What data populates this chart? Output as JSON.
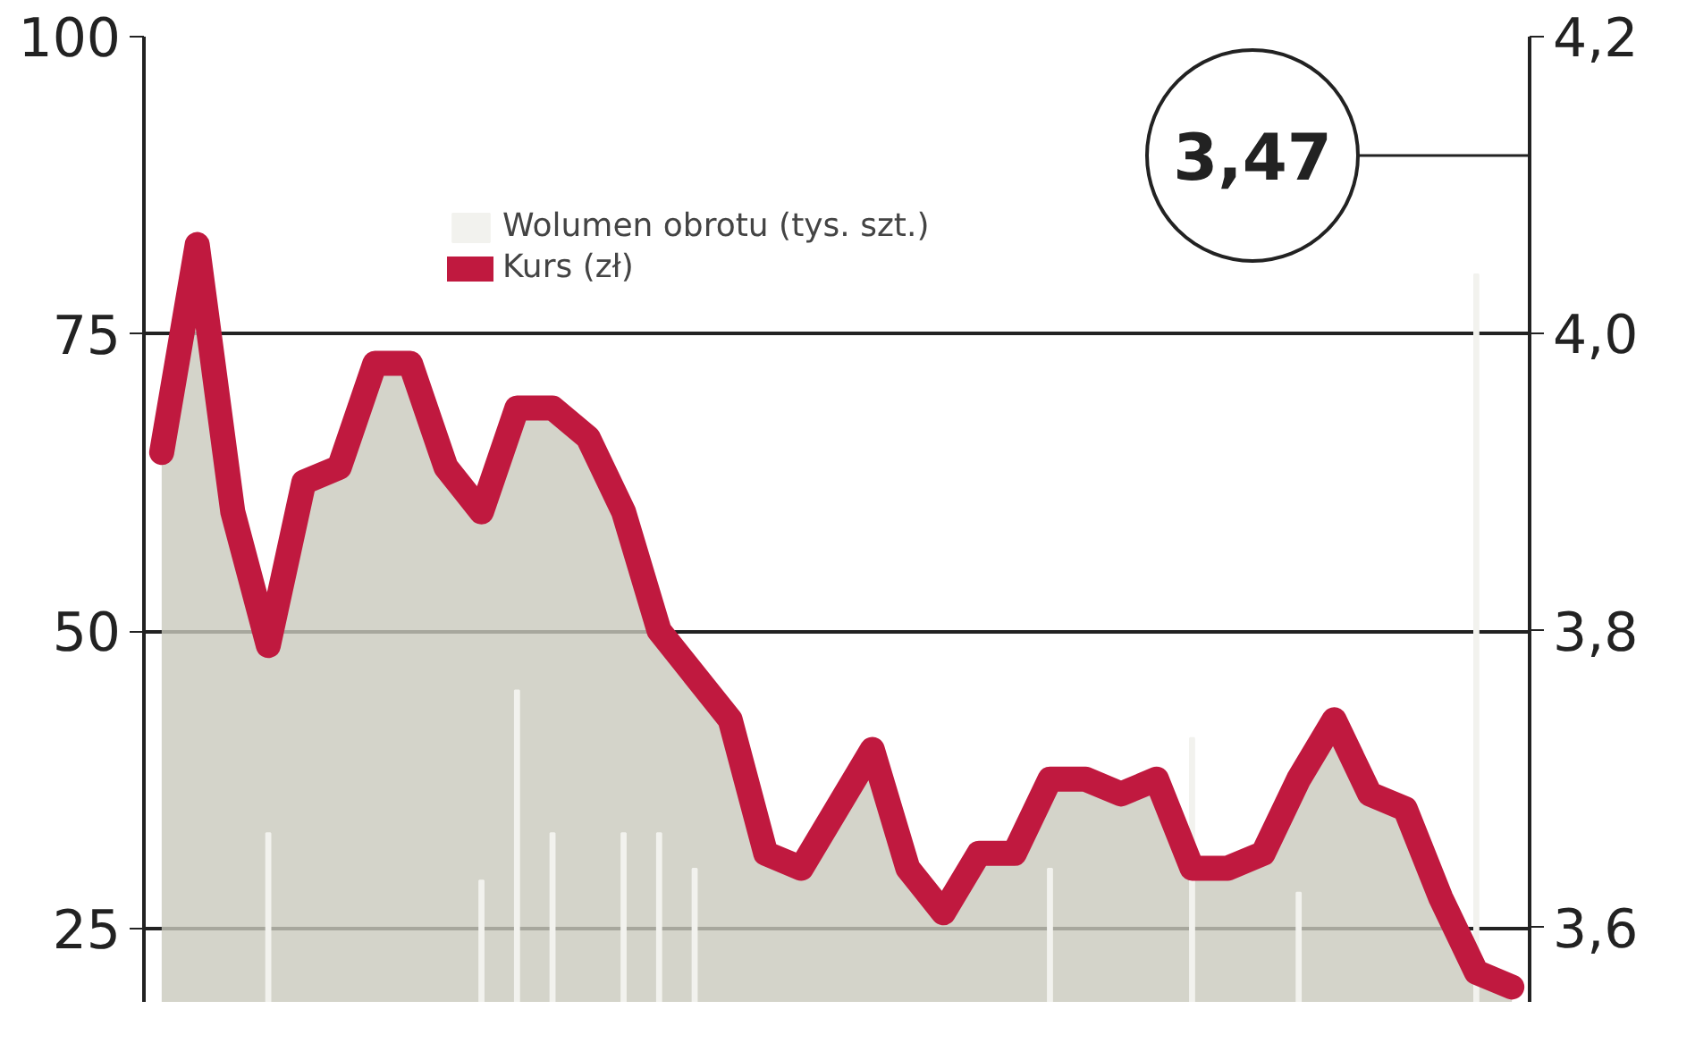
{
  "chart_data": {
    "type": "bar",
    "categories": [
      null,
      null,
      null,
      null,
      null,
      null,
      null,
      null,
      null,
      null,
      null,
      null,
      null,
      null,
      null,
      null,
      null,
      null,
      null,
      null,
      null,
      null,
      null,
      null,
      null,
      null,
      null,
      null,
      null,
      null,
      null,
      null,
      null,
      null,
      null,
      null,
      null,
      null,
      null
    ],
    "series": [
      {
        "name": "Wolumen obrotu (tys. szt.)",
        "color": "#f2f2ee",
        "values": [
          null,
          null,
          null,
          33,
          null,
          null,
          null,
          null,
          null,
          29,
          45,
          33,
          null,
          33,
          33,
          30,
          null,
          null,
          null,
          null,
          null,
          null,
          null,
          null,
          null,
          30,
          null,
          null,
          null,
          41,
          null,
          null,
          28,
          null,
          null,
          null,
          null,
          80,
          null
        ]
      },
      {
        "name": "Kurs (zł)",
        "type": "area",
        "axis": "y2",
        "color": "#c0193f",
        "values": [
          3.92,
          4.06,
          3.88,
          3.79,
          3.9,
          3.91,
          3.98,
          3.98,
          3.91,
          3.88,
          3.95,
          3.95,
          3.93,
          3.88,
          3.8,
          3.77,
          3.74,
          3.65,
          3.64,
          3.68,
          3.72,
          3.64,
          3.61,
          3.65,
          3.65,
          3.7,
          3.7,
          3.69,
          3.7,
          3.64,
          3.64,
          3.65,
          3.7,
          3.74,
          3.69,
          3.68,
          3.62,
          3.57,
          3.56
        ]
      }
    ],
    "ylim": [
      18.8,
      100
    ],
    "yticks": [
      25,
      50,
      75,
      100
    ],
    "y2lim": [
      3.55,
      4.2
    ],
    "y2ticks": [
      {
        "value": 3.6,
        "label": "3,6"
      },
      {
        "value": 3.8,
        "label": "3,8"
      },
      {
        "value": 4.0,
        "label": "4,0"
      },
      {
        "value": 4.2,
        "label": "4,2"
      }
    ],
    "grid": "y",
    "legend": "top",
    "tick_labels": "y",
    "annotations": [
      "3,47"
    ]
  }
}
